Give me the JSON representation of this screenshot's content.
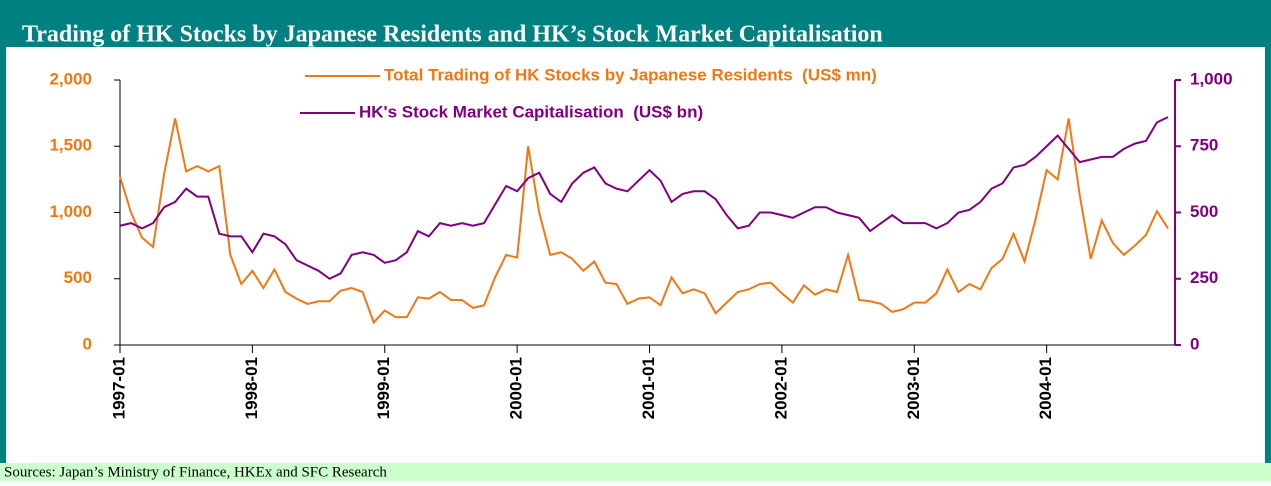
{
  "chart_data": {
    "type": "line",
    "title": "Trading of HK Stocks by Japanese Residents and HK’s Stock Market Capitalisation",
    "source": "Sources: Japan’s Ministry of Finance, HKEx and SFC Research",
    "categories": [
      "1997-01",
      null,
      null,
      null,
      null,
      null,
      null,
      null,
      null,
      null,
      null,
      null,
      "1998-01",
      null,
      null,
      null,
      null,
      null,
      null,
      null,
      null,
      null,
      null,
      null,
      "1999-01",
      null,
      null,
      null,
      null,
      null,
      null,
      null,
      null,
      null,
      null,
      null,
      "2000-01",
      null,
      null,
      null,
      null,
      null,
      null,
      null,
      null,
      null,
      null,
      null,
      "2001-01",
      null,
      null,
      null,
      null,
      null,
      null,
      null,
      null,
      null,
      null,
      null,
      "2002-01",
      null,
      null,
      null,
      null,
      null,
      null,
      null,
      null,
      null,
      null,
      null,
      "2003-01",
      null,
      null,
      null,
      null,
      null,
      null,
      null,
      null,
      null,
      null,
      null,
      "2004-01",
      null,
      null,
      null,
      null,
      null,
      null,
      null,
      null,
      null,
      null,
      null
    ],
    "series": [
      {
        "name": "Total Trading of HK Stocks by Japanese Residents  (US$ mn)",
        "color": "#f07814",
        "axis": "y",
        "values": [
          1270,
          1000,
          810,
          740,
          1290,
          1710,
          1310,
          1350,
          1310,
          1350,
          680,
          460,
          560,
          430,
          570,
          400,
          350,
          310,
          330,
          330,
          410,
          430,
          400,
          170,
          260,
          210,
          210,
          360,
          350,
          400,
          340,
          340,
          280,
          300,
          510,
          680,
          660,
          1500,
          1000,
          680,
          700,
          650,
          560,
          630,
          470,
          460,
          310,
          350,
          360,
          300,
          510,
          390,
          420,
          390,
          240,
          320,
          400,
          420,
          460,
          470,
          390,
          320,
          450,
          380,
          420,
          400,
          680,
          340,
          330,
          310,
          250,
          270,
          320,
          320,
          390,
          570,
          400,
          460,
          420,
          580,
          650,
          840,
          630,
          950,
          1320,
          1250,
          1710,
          1130,
          650,
          940,
          770,
          680,
          750,
          830,
          1010,
          880
        ]
      },
      {
        "name": "HK's Stock Market Capitalisation  (US$ bn)",
        "color": "#800080",
        "axis": "y2",
        "values": [
          450,
          460,
          440,
          460,
          520,
          540,
          590,
          560,
          560,
          420,
          410,
          410,
          350,
          420,
          410,
          380,
          320,
          300,
          280,
          250,
          270,
          340,
          350,
          340,
          310,
          320,
          350,
          430,
          410,
          460,
          450,
          460,
          450,
          460,
          530,
          600,
          580,
          630,
          650,
          570,
          540,
          610,
          650,
          670,
          610,
          590,
          580,
          620,
          660,
          620,
          540,
          570,
          580,
          580,
          550,
          490,
          440,
          450,
          500,
          500,
          490,
          480,
          500,
          520,
          520,
          500,
          490,
          480,
          430,
          460,
          490,
          460,
          460,
          460,
          440,
          460,
          500,
          510,
          540,
          590,
          610,
          670,
          680,
          710,
          750,
          790,
          740,
          690,
          700,
          710,
          710,
          740,
          760,
          770,
          840,
          860
        ]
      }
    ],
    "ylim": [
      0,
      2000
    ],
    "yticks": [
      0,
      500,
      {
        "value": 1000,
        "label": "1,000"
      },
      {
        "value": 1500,
        "label": "1,500"
      },
      {
        "value": 2000,
        "label": "2,000"
      }
    ],
    "y2lim": [
      0,
      1000
    ],
    "y2ticks": [
      0,
      250,
      500,
      750,
      {
        "value": 1000,
        "label": "1,000"
      }
    ]
  }
}
